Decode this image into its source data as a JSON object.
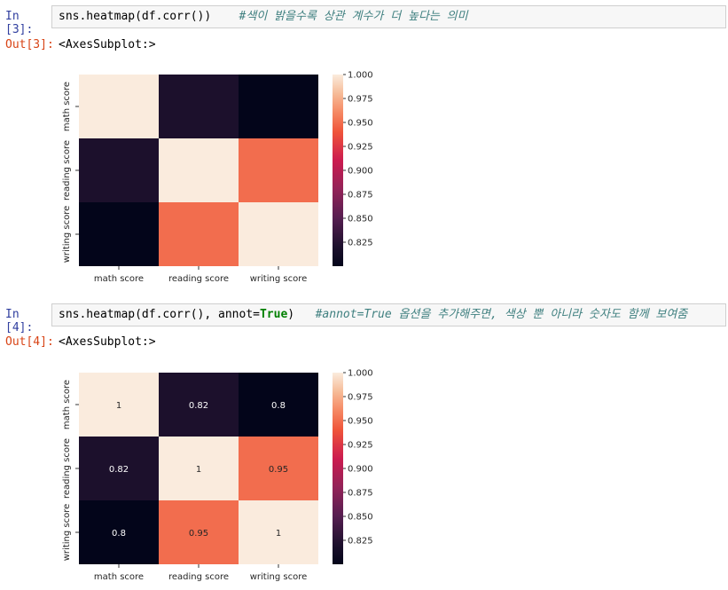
{
  "cells": [
    {
      "in_prompt": "In [3]:",
      "code": "sns.heatmap(df.corr())",
      "code_parts": [],
      "comment": "#색이 밝을수록 상관 계수가 더 높다는 의미",
      "out_prompt": "Out[3]:",
      "output_text": "<AxesSubplot:>"
    },
    {
      "in_prompt": "In [4]:",
      "code": "",
      "code_parts": [
        "sns.heatmap(df.corr(), annot=",
        "True",
        ")"
      ],
      "comment": "#annot=True 옵션을 추가해주면, 색상 뿐 아니라 숫자도 함께 보여줌",
      "out_prompt": "Out[4]:",
      "output_text": "<AxesSubplot:>"
    }
  ],
  "chart_data": [
    {
      "type": "heatmap",
      "annot": false,
      "x_labels": [
        "math score",
        "reading score",
        "writing score"
      ],
      "y_labels": [
        "math score",
        "reading score",
        "writing score"
      ],
      "matrix": [
        [
          1,
          0.82,
          0.8
        ],
        [
          0.82,
          1,
          0.95
        ],
        [
          0.8,
          0.95,
          1
        ]
      ],
      "annotations": [],
      "colorbar": {
        "vmin": 0.8,
        "vmax": 1.0,
        "ticks": [
          1.0,
          0.975,
          0.95,
          0.925,
          0.9,
          0.875,
          0.85,
          0.825
        ],
        "tick_labels": [
          "1.000",
          "0.975",
          "0.950",
          "0.925",
          "0.900",
          "0.875",
          "0.850",
          "0.825"
        ]
      }
    },
    {
      "type": "heatmap",
      "annot": true,
      "x_labels": [
        "math score",
        "reading score",
        "writing score"
      ],
      "y_labels": [
        "math score",
        "reading score",
        "writing score"
      ],
      "matrix": [
        [
          1,
          0.82,
          0.8
        ],
        [
          0.82,
          1,
          0.95
        ],
        [
          0.8,
          0.95,
          1
        ]
      ],
      "annotations": [
        [
          "1",
          "0.82",
          "0.8"
        ],
        [
          "0.82",
          "1",
          "0.95"
        ],
        [
          "0.8",
          "0.95",
          "1"
        ]
      ],
      "colorbar": {
        "vmin": 0.8,
        "vmax": 1.0,
        "ticks": [
          1.0,
          0.975,
          0.95,
          0.925,
          0.9,
          0.875,
          0.85,
          0.825
        ],
        "tick_labels": [
          "1.000",
          "0.975",
          "0.950",
          "0.925",
          "0.900",
          "0.875",
          "0.850",
          "0.825"
        ]
      }
    }
  ]
}
